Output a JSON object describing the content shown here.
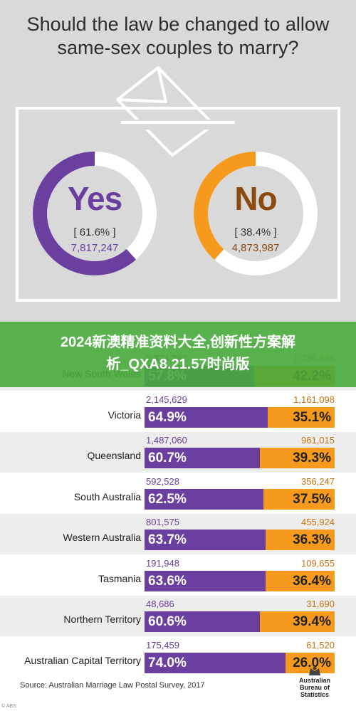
{
  "question": [
    "Should the law be changed to allow",
    "same-sex couples to marry?"
  ],
  "overall": {
    "yes": {
      "label": "Yes",
      "percent": "[ 61.6% ]",
      "count": "7,817,247",
      "fraction": 0.616,
      "color": "#6b3fa0"
    },
    "no": {
      "label": "No",
      "percent": "[ 38.4% ]",
      "count": "4,873,987",
      "fraction": 0.384,
      "color": "#f59a1c"
    }
  },
  "overlay_banner": [
    "2024新澳精准资料大全,创新性方案解",
    "析_QXA8.21.57时尚版"
  ],
  "chart_data": {
    "type": "bar",
    "categories": [
      "New South Wales",
      "Victoria",
      "Queensland",
      "South Australia",
      "Western Australia",
      "Tasmania",
      "Northern Territory",
      "Australian Capital Territory"
    ],
    "series": [
      {
        "name": "Yes",
        "values": [
          57.8,
          64.9,
          60.7,
          62.5,
          63.7,
          63.6,
          60.6,
          74.0
        ],
        "labels": [
          "57.8%",
          "64.9%",
          "60.7%",
          "62.5%",
          "63.7%",
          "63.6%",
          "60.6%",
          "74.0%"
        ],
        "counts": [
          "2,374,362",
          "2,145,629",
          "1,487,060",
          "592,528",
          "801,575",
          "191,948",
          "48,686",
          "175,459"
        ]
      },
      {
        "name": "No",
        "values": [
          42.2,
          35.1,
          39.3,
          37.5,
          36.3,
          36.4,
          39.4,
          26.0
        ],
        "labels": [
          "42.2%",
          "35.1%",
          "39.3%",
          "37.5%",
          "36.3%",
          "36.4%",
          "39.4%",
          "26.0%"
        ],
        "counts": [
          "1,736,838",
          "1,161,098",
          "961,015",
          "356,247",
          "455,924",
          "109,655",
          "31,690",
          "61,520"
        ]
      }
    ],
    "stacked": true,
    "ylim": [
      0,
      100
    ]
  },
  "source": "Source: Australian Marriage Law Postal Survey, 2017",
  "logo_text": [
    "Australian",
    "Bureau of",
    "Statistics"
  ],
  "corner_mark": "© ABS"
}
